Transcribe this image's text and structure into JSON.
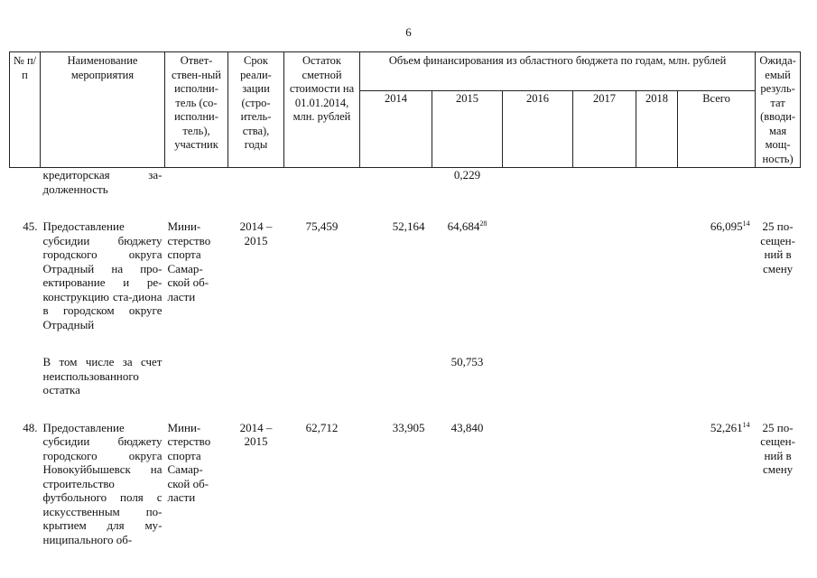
{
  "page_number": "6",
  "header": {
    "num": "№ п/п",
    "name": "Наименование мероприятия",
    "executor": "Ответ-ствен-ный исполни-тель (со-исполни-тель), участник",
    "period": "Срок реали-зации (стро-итель-ства), годы",
    "balance": "Остаток сметной стоимости на 01.01.2014, млн. рублей",
    "funding": "Объем финансирования из областного бюджета по годам, млн. рублей",
    "years": [
      "2014",
      "2015",
      "2016",
      "2017",
      "2018",
      "Всего"
    ],
    "result": "Ожида-емый резуль-тат (вводи-мая мощ-ность)"
  },
  "rows": [
    {
      "kind": "sub",
      "name": "кредиторская за-долженность",
      "y2015": "0,229"
    },
    {
      "kind": "main",
      "num": "45.",
      "name": "Предоставление субсидии бюджету городского округа Отрадный на про-ектирование и ре-конструкцию ста-диона в городском округе Отрадный",
      "executor": "Мини-стерство спорта Самар-ской об-ласти",
      "period": "2014 – 2015",
      "balance": "75,459",
      "y2014": "52,164",
      "y2015": "64,684",
      "y2015_note": "28",
      "total": "66,095",
      "total_note": "14",
      "result": "25 по-сещен-ний в смену"
    },
    {
      "kind": "sub",
      "name": "В том числе за счет неиспользованного остатка",
      "y2015": "50,753"
    },
    {
      "kind": "main",
      "num": "48.",
      "name": "Предоставление субсидии бюджету городского округа Новокуйбышевск на строительство футбольного поля с искусственным по-крытием для му-ниципального об-",
      "executor": "Мини-стерство спорта Самар-ской об-ласти",
      "period": "2014 – 2015",
      "balance": "62,712",
      "y2014": "33,905",
      "y2015": "43,840",
      "total": "52,261",
      "total_note": "14",
      "result": "25 по-сещен-ний в смену"
    }
  ]
}
